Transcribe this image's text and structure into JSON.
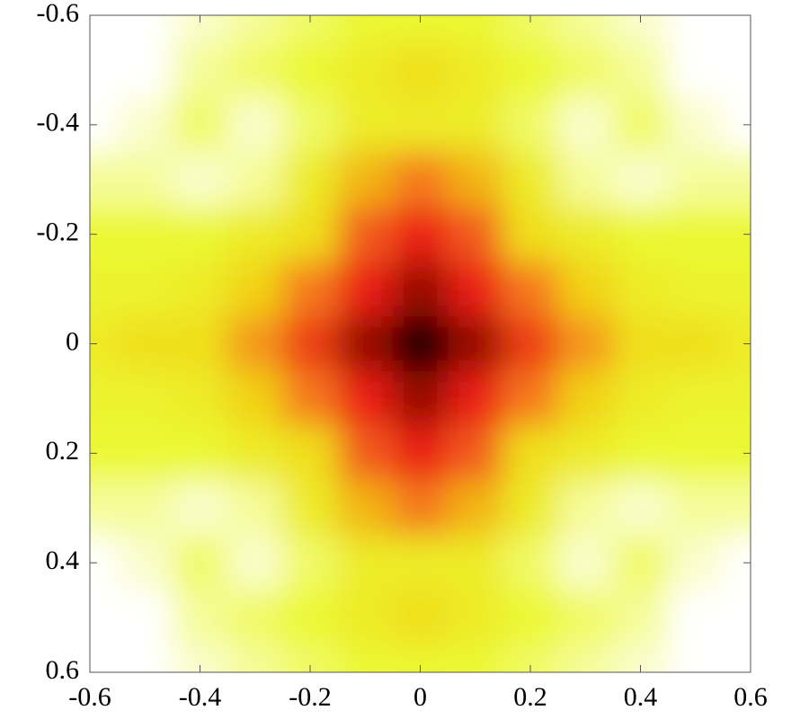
{
  "chart_data": {
    "type": "heatmap",
    "x": [
      -0.6,
      -0.5,
      -0.4,
      -0.3,
      -0.2,
      -0.1,
      0,
      0.1,
      0.2,
      0.3,
      0.4,
      0.5,
      0.6
    ],
    "y": [
      -0.6,
      -0.5,
      -0.4,
      -0.3,
      -0.2,
      -0.1,
      0,
      0.1,
      0.2,
      0.3,
      0.4,
      0.5,
      0.6
    ],
    "z": [
      [
        0,
        0,
        0.05,
        0.1,
        0.15,
        0.2,
        0.2,
        0.2,
        0.15,
        0.1,
        0.05,
        0,
        0
      ],
      [
        0,
        0,
        0.1,
        0.15,
        0.2,
        0.25,
        0.3,
        0.25,
        0.2,
        0.15,
        0.1,
        0,
        0
      ],
      [
        0,
        0.05,
        0.15,
        0.05,
        0.15,
        0.25,
        0.25,
        0.25,
        0.15,
        0.05,
        0.15,
        0.05,
        0
      ],
      [
        0.1,
        0.1,
        0.05,
        0.1,
        0.25,
        0.4,
        0.5,
        0.4,
        0.25,
        0.1,
        0.05,
        0.1,
        0.1
      ],
      [
        0.2,
        0.2,
        0.2,
        0.25,
        0.3,
        0.55,
        0.65,
        0.55,
        0.3,
        0.25,
        0.2,
        0.2,
        0.2
      ],
      [
        0.22,
        0.22,
        0.25,
        0.35,
        0.5,
        0.65,
        0.8,
        0.65,
        0.5,
        0.35,
        0.25,
        0.22,
        0.22
      ],
      [
        0.25,
        0.3,
        0.3,
        0.45,
        0.6,
        0.8,
        1,
        0.8,
        0.6,
        0.45,
        0.3,
        0.3,
        0.25
      ],
      [
        0.22,
        0.22,
        0.25,
        0.35,
        0.5,
        0.65,
        0.8,
        0.65,
        0.5,
        0.35,
        0.25,
        0.22,
        0.22
      ],
      [
        0.2,
        0.2,
        0.2,
        0.25,
        0.3,
        0.55,
        0.65,
        0.55,
        0.3,
        0.25,
        0.2,
        0.2,
        0.2
      ],
      [
        0.1,
        0.1,
        0.05,
        0.1,
        0.25,
        0.4,
        0.5,
        0.4,
        0.25,
        0.1,
        0.05,
        0.1,
        0.1
      ],
      [
        0,
        0.05,
        0.15,
        0.05,
        0.15,
        0.25,
        0.25,
        0.25,
        0.15,
        0.05,
        0.15,
        0.05,
        0
      ],
      [
        0,
        0,
        0.1,
        0.15,
        0.2,
        0.25,
        0.3,
        0.25,
        0.2,
        0.15,
        0.1,
        0,
        0
      ],
      [
        0,
        0,
        0.05,
        0.1,
        0.15,
        0.2,
        0.2,
        0.2,
        0.15,
        0.1,
        0.05,
        0,
        0
      ]
    ],
    "xlim": [
      -0.6,
      0.6
    ],
    "ylim": [
      -0.6,
      0.6
    ],
    "y_inverted": true,
    "xticks": [
      -0.6,
      -0.4,
      -0.2,
      0,
      0.2,
      0.4,
      0.6
    ],
    "yticks": [
      -0.6,
      -0.4,
      -0.2,
      0,
      0.2,
      0.4,
      0.6
    ]
  }
}
